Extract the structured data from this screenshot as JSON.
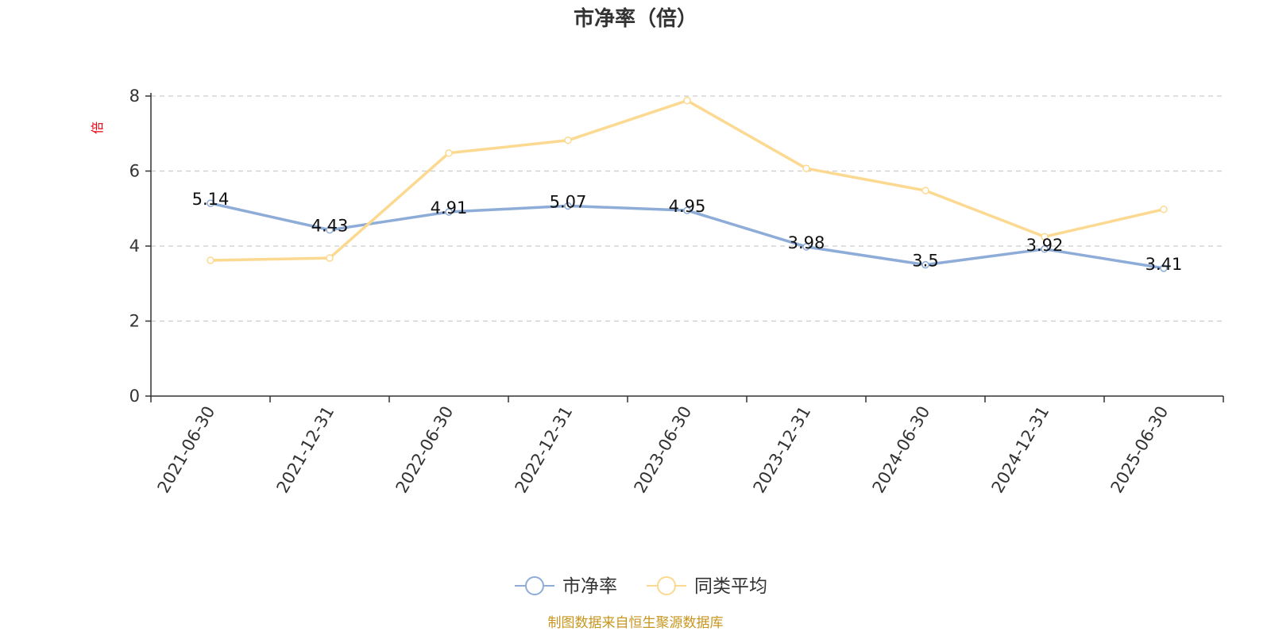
{
  "chart_data": {
    "type": "line",
    "title": "市净率（倍）",
    "ylabel": "倍",
    "xlabel": "",
    "x": [
      "2021-06-30",
      "2021-12-31",
      "2022-06-30",
      "2022-12-31",
      "2023-06-30",
      "2023-12-31",
      "2024-06-30",
      "2024-12-31",
      "2025-06-30"
    ],
    "ylim": [
      0,
      8
    ],
    "yticks": [
      0,
      2,
      4,
      6,
      8
    ],
    "grid": true,
    "legend_position": "bottom",
    "series": [
      {
        "name": "市净率",
        "values": [
          5.14,
          4.43,
          4.91,
          5.07,
          4.95,
          3.98,
          3.5,
          3.92,
          3.41
        ],
        "data_labels": [
          "5.14",
          "4.43",
          "4.91",
          "5.07",
          "4.95",
          "3.98",
          "3.5",
          "3.92",
          "3.41"
        ],
        "color": "#8eacd8"
      },
      {
        "name": "同类平均",
        "values": [
          3.62,
          3.68,
          6.48,
          6.82,
          7.88,
          6.07,
          5.48,
          4.25,
          4.98
        ],
        "color": "#fcd990"
      }
    ],
    "source": "制图数据来自恒生聚源数据库"
  }
}
